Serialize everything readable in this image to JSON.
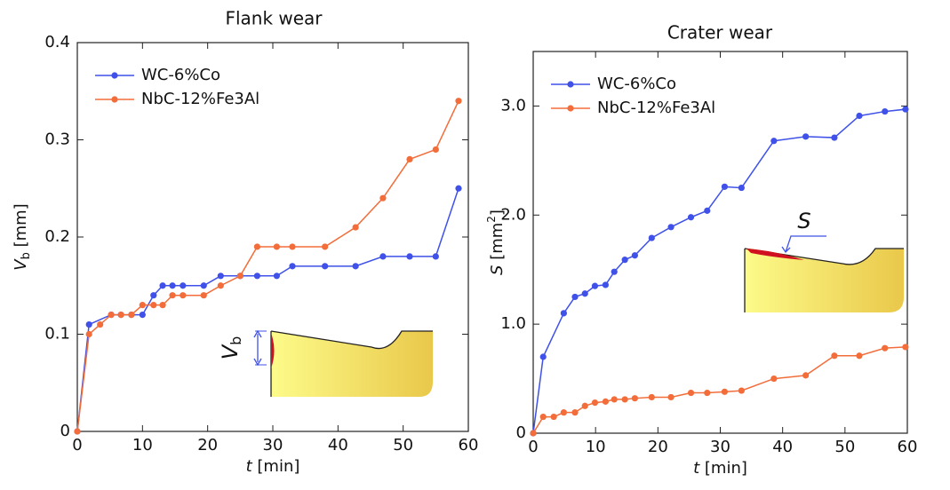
{
  "chart_data": [
    {
      "type": "line",
      "title": "Flank wear",
      "xlabel": {
        "symbol": "t",
        "unit": "[min]"
      },
      "ylabel": {
        "symbol": "V",
        "sub": "b",
        "unit": "[mm]"
      },
      "xlim": [
        0,
        60
      ],
      "xticks": [
        0,
        10,
        20,
        30,
        40,
        50,
        60
      ],
      "ylim": [
        0,
        0.4
      ],
      "yticks": [
        0,
        0.1,
        0.2,
        0.3,
        0.4
      ],
      "legend": "upper left",
      "annotation": {
        "symbol": "V",
        "sub": "b"
      },
      "series": [
        {
          "name": "WC-6%Co",
          "color": "#3f51e8",
          "x": [
            0,
            1.8,
            5.2,
            6.7,
            8.3,
            10,
            11.7,
            13.1,
            14.6,
            16.2,
            19.4,
            22,
            25,
            27.6,
            30.6,
            33,
            38,
            42.7,
            46.9,
            51,
            55,
            58.5
          ],
          "values": [
            0,
            0.11,
            0.12,
            0.12,
            0.12,
            0.12,
            0.14,
            0.15,
            0.15,
            0.15,
            0.15,
            0.16,
            0.16,
            0.16,
            0.16,
            0.17,
            0.17,
            0.17,
            0.18,
            0.18,
            0.18,
            0.25
          ]
        },
        {
          "name": "NbC-12%Fe3Al",
          "color": "#f26d3a",
          "x": [
            0,
            1.8,
            3.5,
            5.2,
            6.7,
            8.3,
            10,
            11.7,
            13.1,
            14.6,
            16.2,
            19.4,
            22,
            25,
            27.6,
            30.6,
            33,
            38,
            42.7,
            46.9,
            51,
            55,
            58.5
          ],
          "values": [
            0,
            0.1,
            0.11,
            0.12,
            0.12,
            0.12,
            0.13,
            0.13,
            0.13,
            0.14,
            0.14,
            0.14,
            0.15,
            0.16,
            0.19,
            0.19,
            0.19,
            0.19,
            0.21,
            0.24,
            0.28,
            0.29,
            0.34
          ]
        }
      ]
    },
    {
      "type": "line",
      "title": "Crater wear",
      "xlabel": {
        "symbol": "t",
        "unit": "[min]"
      },
      "ylabel": {
        "symbol": "S",
        "unit": "[mm",
        "sup": "2",
        "close": "]"
      },
      "xlim": [
        0,
        60
      ],
      "xticks": [
        0,
        10,
        20,
        30,
        40,
        50,
        60
      ],
      "ylim": [
        0,
        3.5
      ],
      "yticks": [
        0,
        {
          "value": 1,
          "label": "1.0"
        },
        {
          "value": 2,
          "label": "2.0"
        },
        {
          "value": 3,
          "label": "3.0"
        }
      ],
      "legend": "upper left",
      "annotation": {
        "symbol": "S"
      },
      "series": [
        {
          "name": "WC-6%Co",
          "color": "#3f51e8",
          "x": [
            0,
            1.6,
            4.9,
            6.7,
            8.3,
            9.9,
            11.6,
            13,
            14.7,
            16.3,
            19,
            22.1,
            25.3,
            27.9,
            30.7,
            33.4,
            38.6,
            43.7,
            48.3,
            52.3,
            56.4,
            59.7
          ],
          "values": [
            0,
            0.7,
            1.1,
            1.25,
            1.28,
            1.35,
            1.36,
            1.48,
            1.59,
            1.63,
            1.79,
            1.89,
            1.98,
            2.04,
            2.26,
            2.25,
            2.68,
            2.72,
            2.71,
            2.91,
            2.95,
            2.97
          ]
        },
        {
          "name": "NbC-12%Fe3Al",
          "color": "#f26d3a",
          "x": [
            0,
            1.6,
            3.3,
            4.9,
            6.7,
            8.3,
            9.9,
            11.6,
            13,
            14.7,
            16.3,
            19,
            22.1,
            25.3,
            27.9,
            30.7,
            33.4,
            38.6,
            43.7,
            48.3,
            52.3,
            56.4,
            59.7
          ],
          "values": [
            0,
            0.15,
            0.15,
            0.19,
            0.19,
            0.25,
            0.28,
            0.29,
            0.31,
            0.31,
            0.32,
            0.33,
            0.33,
            0.37,
            0.37,
            0.38,
            0.39,
            0.5,
            0.53,
            0.71,
            0.71,
            0.78,
            0.79
          ]
        }
      ]
    }
  ]
}
